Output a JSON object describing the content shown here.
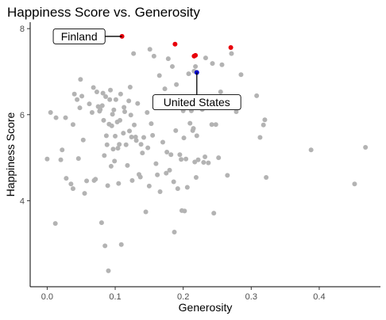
{
  "chart_data": {
    "type": "scatter",
    "title": "Happiness Score vs. Generosity",
    "xlabel": "Generosity",
    "ylabel": "Happiness Score",
    "xlim": [
      -0.025,
      0.49
    ],
    "ylim": [
      2.0,
      8.15
    ],
    "x_ticks": [
      0.0,
      0.1,
      0.2,
      0.3,
      0.4
    ],
    "x_tick_labels": [
      "0.0",
      "0.1",
      "0.2",
      "0.3",
      "0.4"
    ],
    "y_ticks": [
      4,
      6,
      8
    ],
    "y_tick_labels": [
      "4",
      "6",
      "8"
    ],
    "grid": false,
    "colors": {
      "default": "#b3b3b3",
      "highlight": "#e8000b",
      "us": "#0000cc",
      "axis": "#000000"
    },
    "highlight_points": [
      {
        "x": 0.11,
        "y": 7.82
      },
      {
        "x": 0.188,
        "y": 7.64
      },
      {
        "x": 0.216,
        "y": 7.36
      },
      {
        "x": 0.218,
        "y": 7.38
      },
      {
        "x": 0.27,
        "y": 7.56
      }
    ],
    "us_point": {
      "x": 0.22,
      "y": 6.98
    },
    "annotations": [
      {
        "label": "Finland",
        "x": 0.11,
        "y": 7.82,
        "label_x": 0.047,
        "label_y": 7.82
      },
      {
        "label": "United States",
        "x": 0.22,
        "y": 6.98,
        "label_x": 0.22,
        "label_y": 6.29
      }
    ],
    "points": [
      [
        0.0,
        4.97
      ],
      [
        0.005,
        6.05
      ],
      [
        0.012,
        3.47
      ],
      [
        0.013,
        5.93
      ],
      [
        0.02,
        4.95
      ],
      [
        0.022,
        5.18
      ],
      [
        0.027,
        5.93
      ],
      [
        0.028,
        4.52
      ],
      [
        0.035,
        4.39
      ],
      [
        0.038,
        4.28
      ],
      [
        0.038,
        5.77
      ],
      [
        0.04,
        6.48
      ],
      [
        0.044,
        6.35
      ],
      [
        0.046,
        4.98
      ],
      [
        0.048,
        6.16
      ],
      [
        0.049,
        6.82
      ],
      [
        0.051,
        6.43
      ],
      [
        0.053,
        5.41
      ],
      [
        0.055,
        4.17
      ],
      [
        0.058,
        4.46
      ],
      [
        0.062,
        6.25
      ],
      [
        0.066,
        6.05
      ],
      [
        0.068,
        6.63
      ],
      [
        0.069,
        4.47
      ],
      [
        0.071,
        4.5
      ],
      [
        0.073,
        6.53
      ],
      [
        0.075,
        6.19
      ],
      [
        0.077,
        6.08
      ],
      [
        0.078,
        6.12
      ],
      [
        0.08,
        3.49
      ],
      [
        0.081,
        6.21
      ],
      [
        0.082,
        6.5
      ],
      [
        0.083,
        5.87
      ],
      [
        0.084,
        5.05
      ],
      [
        0.085,
        2.95
      ],
      [
        0.086,
        6.42
      ],
      [
        0.087,
        5.51
      ],
      [
        0.088,
        5.3
      ],
      [
        0.089,
        4.35
      ],
      [
        0.09,
        2.37
      ],
      [
        0.091,
        5.78
      ],
      [
        0.092,
        6.35
      ],
      [
        0.093,
        6.57
      ],
      [
        0.094,
        4.8
      ],
      [
        0.095,
        5.74
      ],
      [
        0.096,
        6.01
      ],
      [
        0.097,
        5.2
      ],
      [
        0.098,
        6.11
      ],
      [
        0.099,
        4.92
      ],
      [
        0.1,
        5.5
      ],
      [
        0.101,
        6.35
      ],
      [
        0.103,
        5.83
      ],
      [
        0.104,
        5.22
      ],
      [
        0.105,
        4.4
      ],
      [
        0.106,
        5.31
      ],
      [
        0.107,
        5.87
      ],
      [
        0.108,
        6.48
      ],
      [
        0.109,
        2.98
      ],
      [
        0.112,
        5.57
      ],
      [
        0.113,
        6.17
      ],
      [
        0.114,
        6.07
      ],
      [
        0.116,
        5.3
      ],
      [
        0.118,
        4.82
      ],
      [
        0.12,
        6.32
      ],
      [
        0.121,
        5.62
      ],
      [
        0.122,
        6.64
      ],
      [
        0.123,
        5.99
      ],
      [
        0.124,
        5.48
      ],
      [
        0.125,
        4.47
      ],
      [
        0.127,
        7.42
      ],
      [
        0.128,
        5.76
      ],
      [
        0.13,
        5.48
      ],
      [
        0.131,
        5.4
      ],
      [
        0.133,
        6.26
      ],
      [
        0.135,
        4.61
      ],
      [
        0.137,
        4.55
      ],
      [
        0.138,
        5.31
      ],
      [
        0.14,
        5.11
      ],
      [
        0.142,
        5.47
      ],
      [
        0.145,
        3.74
      ],
      [
        0.147,
        6.05
      ],
      [
        0.148,
        5.23
      ],
      [
        0.15,
        4.34
      ],
      [
        0.151,
        7.52
      ],
      [
        0.153,
        5.79
      ],
      [
        0.155,
        5.52
      ],
      [
        0.157,
        7.36
      ],
      [
        0.16,
        4.86
      ],
      [
        0.162,
        4.6
      ],
      [
        0.165,
        6.91
      ],
      [
        0.166,
        4.21
      ],
      [
        0.168,
        6.25
      ],
      [
        0.17,
        5.36
      ],
      [
        0.172,
        6.42
      ],
      [
        0.173,
        6.6
      ],
      [
        0.175,
        4.64
      ],
      [
        0.176,
        5.13
      ],
      [
        0.178,
        7.3
      ],
      [
        0.18,
        4.71
      ],
      [
        0.182,
        5.07
      ],
      [
        0.184,
        7.12
      ],
      [
        0.186,
        4.44
      ],
      [
        0.187,
        3.27
      ],
      [
        0.189,
        5.63
      ],
      [
        0.19,
        6.7
      ],
      [
        0.192,
        4.28
      ],
      [
        0.194,
        6.37
      ],
      [
        0.195,
        5.07
      ],
      [
        0.197,
        4.96
      ],
      [
        0.198,
        3.77
      ],
      [
        0.2,
        6.09
      ],
      [
        0.201,
        5.46
      ],
      [
        0.202,
        3.76
      ],
      [
        0.203,
        6.17
      ],
      [
        0.204,
        4.97
      ],
      [
        0.205,
        6.41
      ],
      [
        0.206,
        4.31
      ],
      [
        0.208,
        6.95
      ],
      [
        0.21,
        5.8
      ],
      [
        0.212,
        6.09
      ],
      [
        0.214,
        5.63
      ],
      [
        0.215,
        5.68
      ],
      [
        0.216,
        7.01
      ],
      [
        0.217,
        4.9
      ],
      [
        0.218,
        7.12
      ],
      [
        0.219,
        4.54
      ],
      [
        0.22,
        5.51
      ],
      [
        0.222,
        4.95
      ],
      [
        0.225,
        6.37
      ],
      [
        0.228,
        6.12
      ],
      [
        0.23,
        4.89
      ],
      [
        0.232,
        5.02
      ],
      [
        0.233,
        7.32
      ],
      [
        0.237,
        4.88
      ],
      [
        0.24,
        6.19
      ],
      [
        0.242,
        5.77
      ],
      [
        0.243,
        7.19
      ],
      [
        0.245,
        3.71
      ],
      [
        0.248,
        5.77
      ],
      [
        0.252,
        5.0
      ],
      [
        0.255,
        6.53
      ],
      [
        0.257,
        7.16
      ],
      [
        0.26,
        6.39
      ],
      [
        0.265,
        4.59
      ],
      [
        0.271,
        7.42
      ],
      [
        0.278,
        6.07
      ],
      [
        0.285,
        6.93
      ],
      [
        0.308,
        6.44
      ],
      [
        0.313,
        5.47
      ],
      [
        0.318,
        5.76
      ],
      [
        0.32,
        5.88
      ],
      [
        0.322,
        4.54
      ],
      [
        0.388,
        5.18
      ],
      [
        0.452,
        4.39
      ],
      [
        0.468,
        5.24
      ]
    ]
  }
}
